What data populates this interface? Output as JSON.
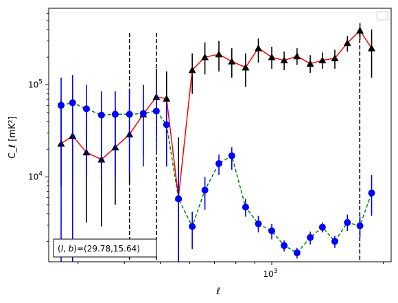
{
  "chart_data": {
    "type": "line",
    "xscale": "log",
    "yscale": "log",
    "xlim": [
      250,
      2100
    ],
    "ylim": [
      1200,
      680000
    ],
    "xlabel": "ℓ",
    "ylabel": "C_ℓ  [mK²]",
    "x_ticks": [
      {
        "value": 1000,
        "base": "10",
        "exp": "3"
      }
    ],
    "y_ticks": [
      {
        "value": 10000,
        "base": "10",
        "exp": "4"
      },
      {
        "value": 100000,
        "base": "10",
        "exp": "5"
      }
    ],
    "annotation": "(l,b)=(29.78,15.64)",
    "annotation_parts": {
      "l": "l",
      "b": "b",
      "values": "=(29.78,15.64)"
    },
    "vlines": [
      413,
      488,
      1728
    ],
    "grid": false,
    "legend": "top-right",
    "series": [
      {
        "color": "#ff0000",
        "marker": "triangle",
        "marker_color": "#000000",
        "errbar_color": "#000000",
        "line_style": "solid",
        "points": [
          {
            "x": 270,
            "y": 23000,
            "lo": 8000,
            "hi": 70000
          },
          {
            "x": 290,
            "y": 28000,
            "lo": 9000,
            "hi": 80000
          },
          {
            "x": 316,
            "y": 18500,
            "lo": 3200,
            "hi": 60000
          },
          {
            "x": 347,
            "y": 15500,
            "lo": 2900,
            "hi": 50000
          },
          {
            "x": 378,
            "y": 21000,
            "lo": 5000,
            "hi": 55000
          },
          {
            "x": 413,
            "y": 29000,
            "lo": 8500,
            "hi": 90000
          },
          {
            "x": 450,
            "y": 48000,
            "lo": 17000,
            "hi": 100000
          },
          {
            "x": 488,
            "y": 74000,
            "lo": 28000,
            "hi": 150000
          },
          {
            "x": 520,
            "y": 71000,
            "lo": 28000,
            "hi": 140000
          },
          {
            "x": 560,
            "y": 6000,
            "lo": 1100,
            "hi": 27000
          },
          {
            "x": 610,
            "y": 145000,
            "lo": 80000,
            "hi": 220000
          },
          {
            "x": 660,
            "y": 200000,
            "lo": 130000,
            "hi": 290000
          },
          {
            "x": 720,
            "y": 215000,
            "lo": 140000,
            "hi": 300000
          },
          {
            "x": 780,
            "y": 180000,
            "lo": 120000,
            "hi": 250000
          },
          {
            "x": 850,
            "y": 155000,
            "lo": 95000,
            "hi": 220000
          },
          {
            "x": 920,
            "y": 250000,
            "lo": 175000,
            "hi": 320000
          },
          {
            "x": 1000,
            "y": 200000,
            "lo": 150000,
            "hi": 260000
          },
          {
            "x": 1080,
            "y": 185000,
            "lo": 145000,
            "hi": 230000
          },
          {
            "x": 1170,
            "y": 205000,
            "lo": 165000,
            "hi": 250000
          },
          {
            "x": 1270,
            "y": 170000,
            "lo": 135000,
            "hi": 210000
          },
          {
            "x": 1370,
            "y": 185000,
            "lo": 150000,
            "hi": 225000
          },
          {
            "x": 1480,
            "y": 195000,
            "lo": 150000,
            "hi": 240000
          },
          {
            "x": 1600,
            "y": 285000,
            "lo": 230000,
            "hi": 340000
          },
          {
            "x": 1730,
            "y": 390000,
            "lo": 310000,
            "hi": 470000
          },
          {
            "x": 1860,
            "y": 250000,
            "lo": 120000,
            "hi": 400000
          }
        ]
      },
      {
        "color": "#008000",
        "marker": "circle",
        "marker_color": "#0000ff",
        "errbar_color": "#0000ff",
        "line_style": "dashed",
        "points": [
          {
            "x": 270,
            "y": 60000,
            "lo": 1200,
            "hi": 120000
          },
          {
            "x": 290,
            "y": 64000,
            "lo": 1200,
            "hi": 128000
          },
          {
            "x": 316,
            "y": 55000,
            "lo": 10000,
            "hi": 100000
          },
          {
            "x": 347,
            "y": 47000,
            "lo": 9000,
            "hi": 85000
          },
          {
            "x": 378,
            "y": 48000,
            "lo": 10000,
            "hi": 85000
          },
          {
            "x": 413,
            "y": 48000,
            "lo": 11000,
            "hi": 85000
          },
          {
            "x": 450,
            "y": 49000,
            "lo": 13000,
            "hi": 85000
          },
          {
            "x": 488,
            "y": 52000,
            "lo": 18000,
            "hi": 88000
          },
          {
            "x": 520,
            "y": 37000,
            "lo": 13000,
            "hi": 62000
          },
          {
            "x": 560,
            "y": 5800,
            "lo": 1200,
            "hi": 12000
          },
          {
            "x": 610,
            "y": 2900,
            "lo": 1650,
            "hi": 4200
          },
          {
            "x": 660,
            "y": 7200,
            "lo": 4400,
            "hi": 10000
          },
          {
            "x": 720,
            "y": 14000,
            "lo": 10500,
            "hi": 17500
          },
          {
            "x": 780,
            "y": 17000,
            "lo": 12000,
            "hi": 21000
          },
          {
            "x": 850,
            "y": 4700,
            "lo": 3700,
            "hi": 5800
          },
          {
            "x": 920,
            "y": 3100,
            "lo": 2500,
            "hi": 3800
          },
          {
            "x": 1000,
            "y": 2600,
            "lo": 2100,
            "hi": 3100
          },
          {
            "x": 1080,
            "y": 1800,
            "lo": 1550,
            "hi": 2050
          },
          {
            "x": 1170,
            "y": 1500,
            "lo": 1300,
            "hi": 1700
          },
          {
            "x": 1270,
            "y": 2200,
            "lo": 1850,
            "hi": 2550
          },
          {
            "x": 1370,
            "y": 2850,
            "lo": 2500,
            "hi": 3200
          },
          {
            "x": 1480,
            "y": 2000,
            "lo": 1700,
            "hi": 2300
          },
          {
            "x": 1600,
            "y": 3200,
            "lo": 2600,
            "hi": 3900
          },
          {
            "x": 1730,
            "y": 2950,
            "lo": 2200,
            "hi": 3700
          },
          {
            "x": 1860,
            "y": 6700,
            "lo": 3800,
            "hi": 10500
          }
        ]
      }
    ]
  }
}
